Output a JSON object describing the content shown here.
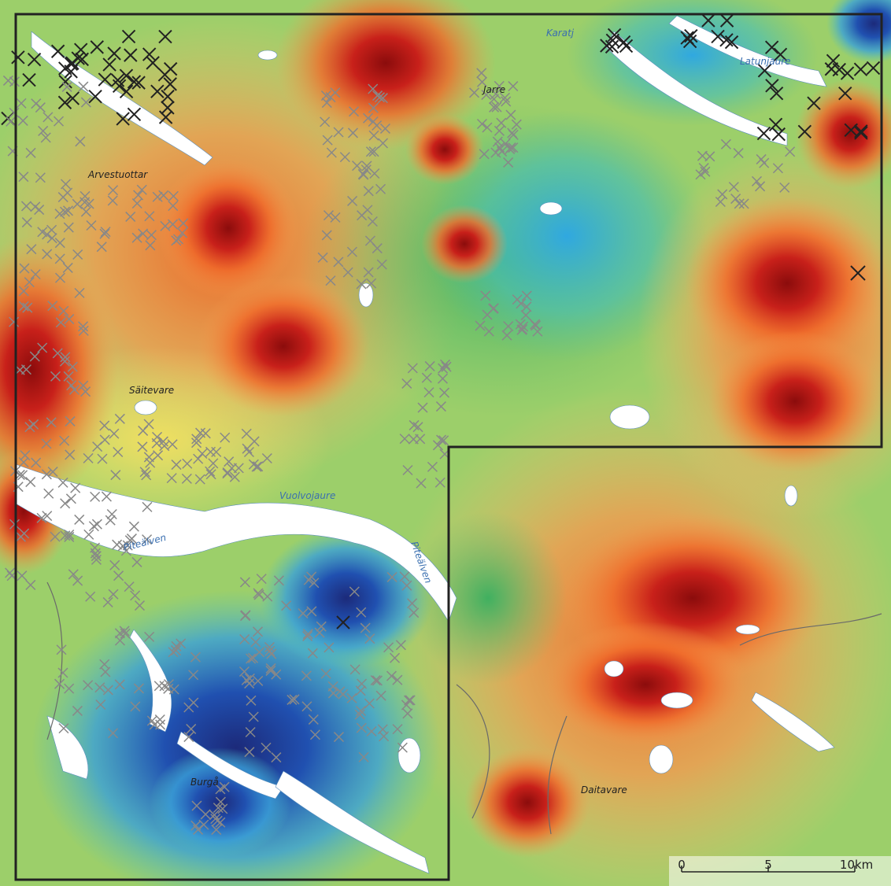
{
  "places": [
    "Jarre",
    "Arvestuottar",
    "Säitevare",
    "Burgå",
    "Daitavare"
  ],
  "waters": [
    "Karatj",
    "Latunjaure",
    "Vuolvojaure",
    "Piteälven",
    "Piteälven"
  ],
  "scale_bar": {
    "ticks": [
      0,
      5,
      10
    ],
    "unit": "km"
  }
}
